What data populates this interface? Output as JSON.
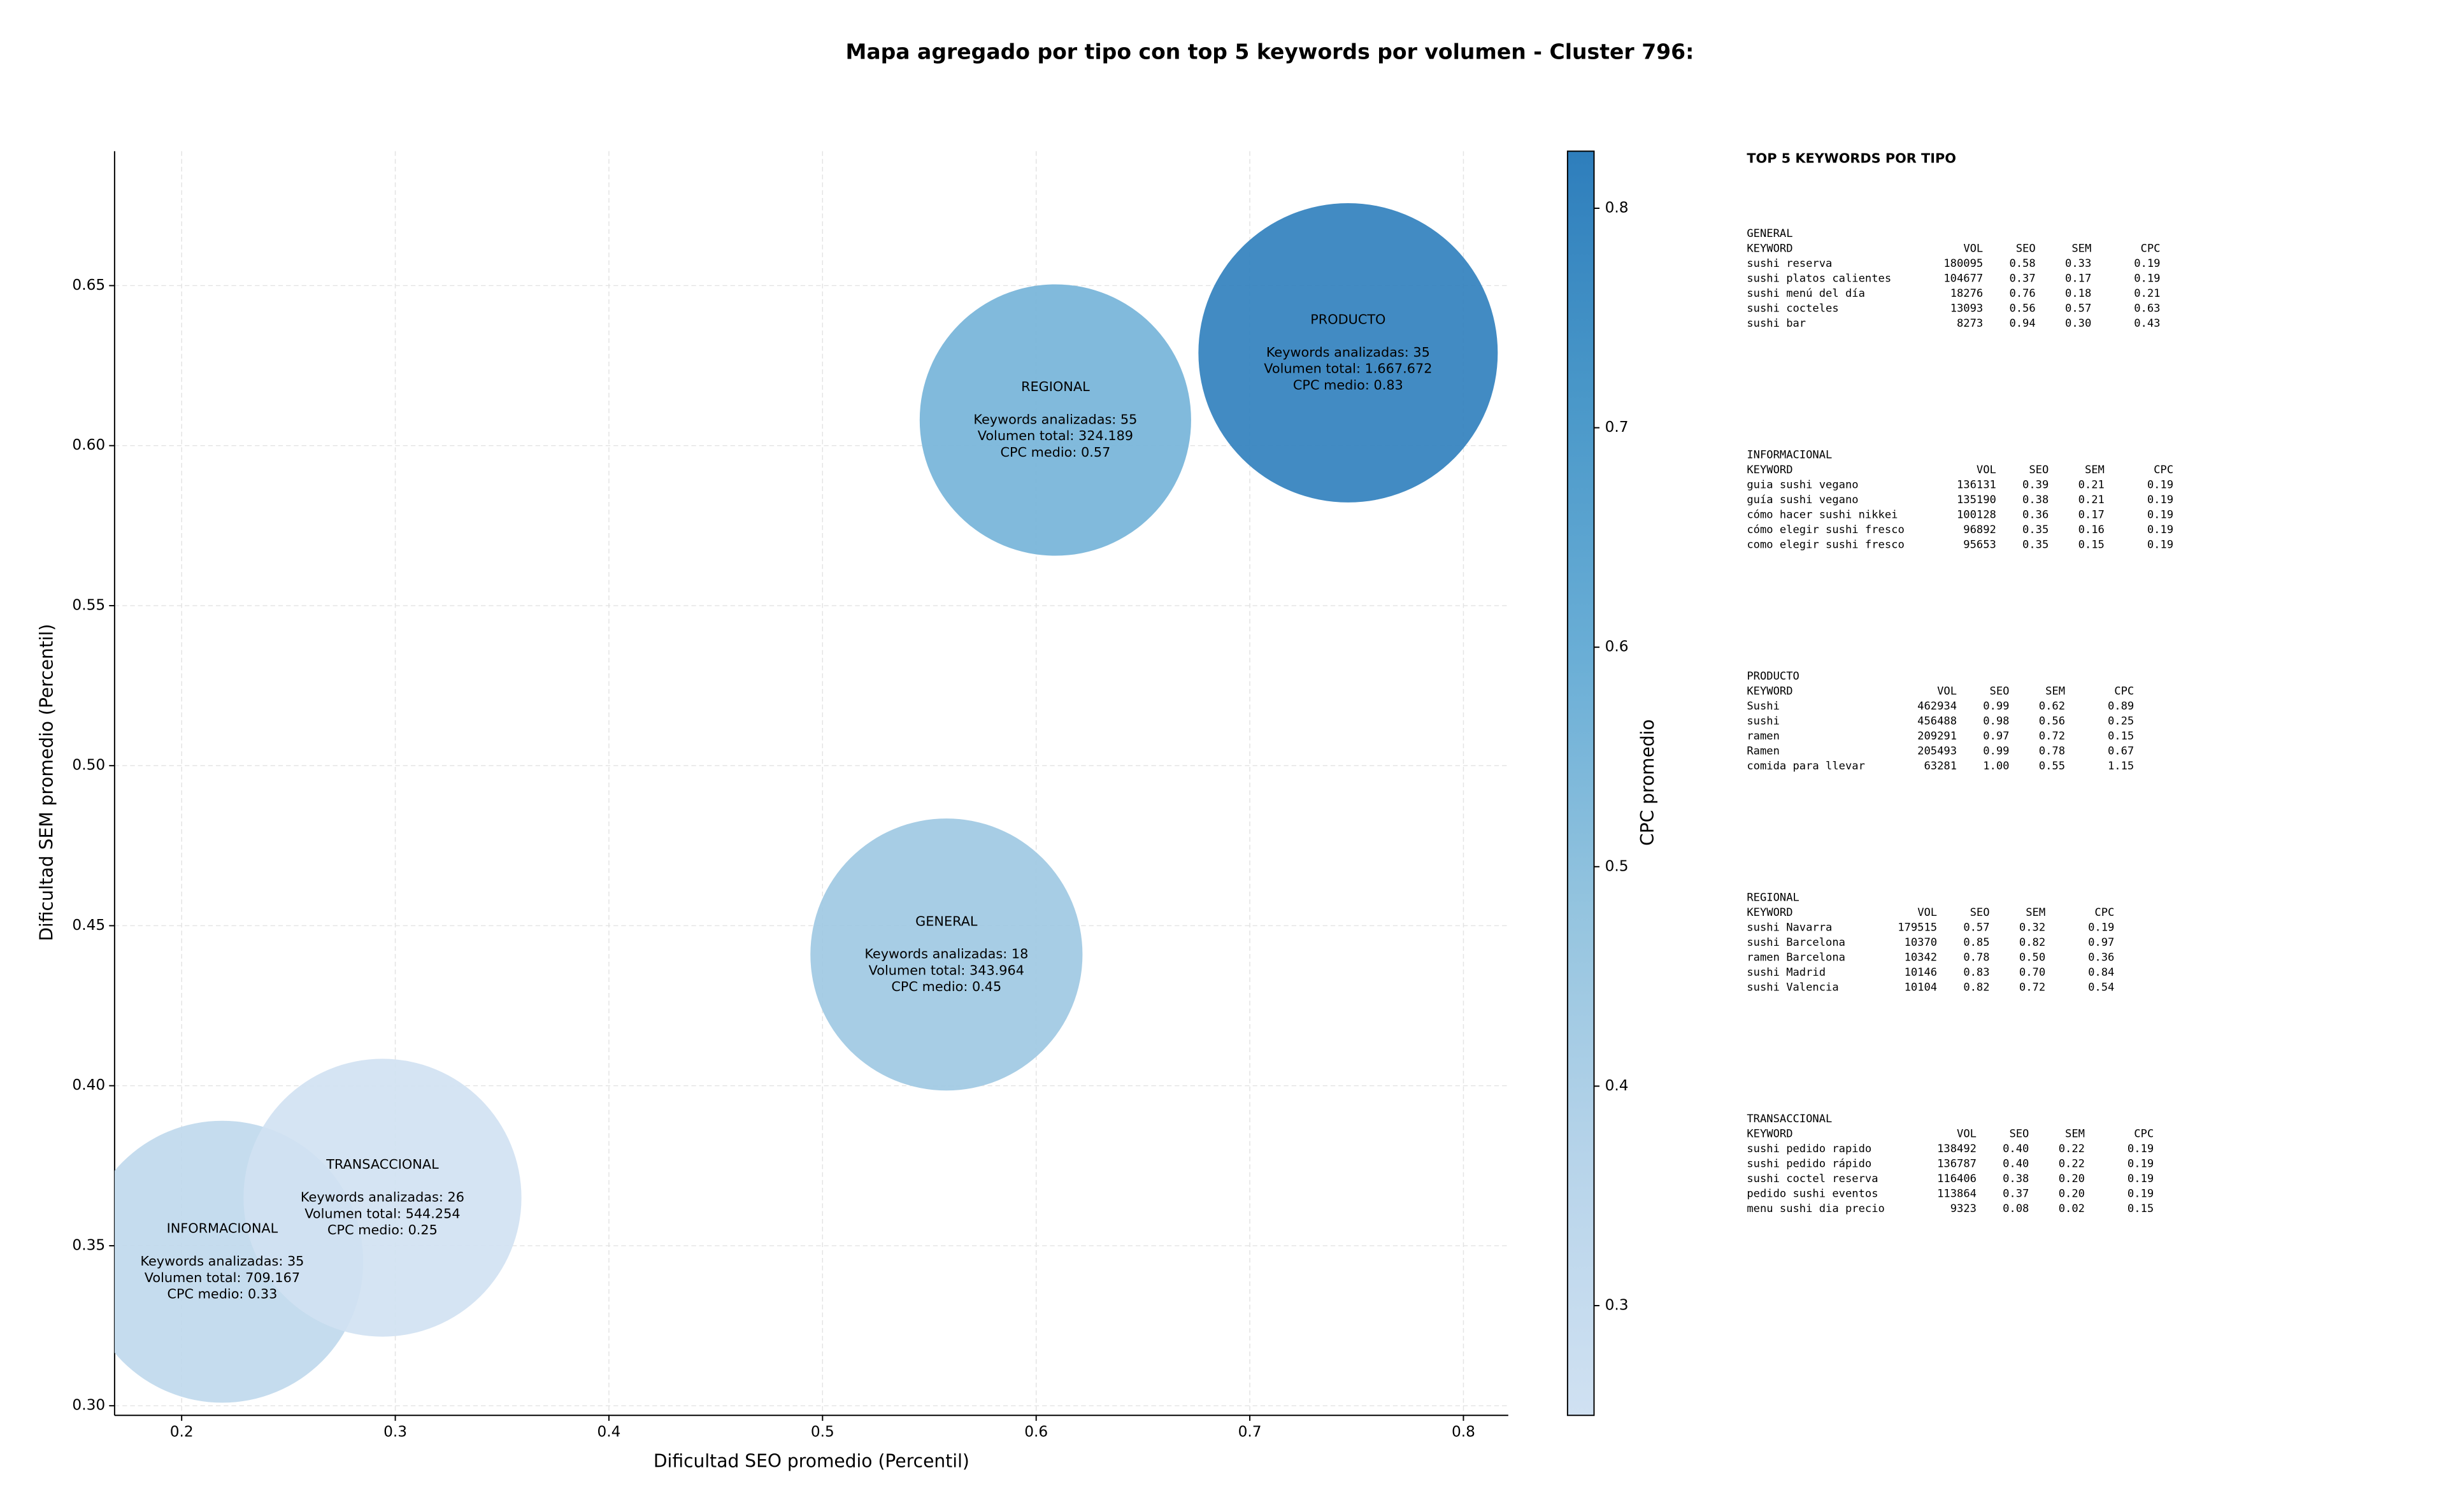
{
  "chart_data": {
    "type": "bubble",
    "title": "Mapa agregado por tipo con top 5 keywords por volumen - Cluster 796:",
    "x_label": "Dificultad SEO promedio (Percentil)",
    "y_label": "Dificultad SEM promedio (Percentil)",
    "categories": [
      "INFORMACIONAL",
      "TRANSACCIONAL",
      "GENERAL",
      "REGIONAL",
      "PRODUCTO"
    ],
    "x": [
      0.219,
      0.294,
      0.558,
      0.609,
      0.746
    ],
    "y": [
      0.345,
      0.365,
      0.441,
      0.608,
      0.629
    ],
    "cpc": [
      0.33,
      0.25,
      0.45,
      0.57,
      0.83
    ],
    "volume": [
      709167,
      544254,
      343964,
      324189,
      1667672
    ],
    "annotations": [
      [
        "Keywords analizadas: 35",
        "Volumen total: 709.167",
        "CPC medio: 0.33"
      ],
      [
        "Keywords analizadas: 26",
        "Volumen total: 544.254",
        "CPC medio: 0.25"
      ],
      [
        "Keywords analizadas: 18",
        "Volumen total: 343.964",
        "CPC medio: 0.45"
      ],
      [
        "Keywords analizadas: 55",
        "Volumen total: 324.189",
        "CPC medio: 0.57"
      ],
      [
        "Keywords analizadas: 35",
        "Volumen total: 1.667.672",
        "CPC medio: 0.83"
      ]
    ],
    "xlim": [
      0.1686,
      0.821
    ],
    "xticks": [
      0.2,
      0.3,
      0.4,
      0.5,
      0.6,
      0.7,
      0.8
    ],
    "ylim": [
      0.297,
      0.692
    ],
    "yticks": [
      {
        "value": 0.3,
        "label": "0.30"
      },
      0.35,
      {
        "value": 0.4,
        "label": "0.40"
      },
      0.45,
      {
        "value": 0.5,
        "label": "0.50"
      },
      0.55,
      {
        "value": 0.6,
        "label": "0.60"
      },
      0.65
    ],
    "grid": true,
    "colorbar": {
      "label": "CPC promedio",
      "lim": [
        0.25,
        0.826
      ],
      "ticks": [
        0.3,
        0.4,
        0.5,
        0.6,
        0.7,
        0.8
      ],
      "colors": [
        "#d0e1f2",
        "#b7d4ea",
        "#94c4df",
        "#6aaed6",
        "#4a98c9",
        "#2e7ebc"
      ]
    },
    "keyword_tables": {
      "title": "TOP 5 KEYWORDS POR TIPO",
      "header": [
        "KEYWORD",
        "VOL",
        "SEO",
        "SEM",
        "CPC"
      ],
      "groups": [
        {
          "name": "GENERAL",
          "rows": [
            [
              "sushi reserva",
              "180095",
              "0.58",
              "0.33",
              "0.19"
            ],
            [
              "sushi platos calientes",
              "104677",
              "0.37",
              "0.17",
              "0.19"
            ],
            [
              "sushi menú del día",
              "18276",
              "0.76",
              "0.18",
              "0.21"
            ],
            [
              "sushi cocteles",
              "13093",
              "0.56",
              "0.57",
              "0.63"
            ],
            [
              "sushi bar",
              "8273",
              "0.94",
              "0.30",
              "0.43"
            ]
          ]
        },
        {
          "name": "INFORMACIONAL",
          "rows": [
            [
              "guia sushi vegano",
              "136131",
              "0.39",
              "0.21",
              "0.19"
            ],
            [
              "guía sushi vegano",
              "135190",
              "0.38",
              "0.21",
              "0.19"
            ],
            [
              "cómo hacer sushi nikkei",
              "100128",
              "0.36",
              "0.17",
              "0.19"
            ],
            [
              "cómo elegir sushi fresco",
              "96892",
              "0.35",
              "0.16",
              "0.19"
            ],
            [
              "como elegir sushi fresco",
              "95653",
              "0.35",
              "0.15",
              "0.19"
            ]
          ]
        },
        {
          "name": "PRODUCTO",
          "rows": [
            [
              "Sushi",
              "462934",
              "0.99",
              "0.62",
              "0.89"
            ],
            [
              "sushi",
              "456488",
              "0.98",
              "0.56",
              "0.25"
            ],
            [
              "ramen",
              "209291",
              "0.97",
              "0.72",
              "0.15"
            ],
            [
              "Ramen",
              "205493",
              "0.99",
              "0.78",
              "0.67"
            ],
            [
              "comida para llevar",
              "63281",
              "1.00",
              "0.55",
              "1.15"
            ]
          ]
        },
        {
          "name": "REGIONAL",
          "rows": [
            [
              "sushi Navarra",
              "179515",
              "0.57",
              "0.32",
              "0.19"
            ],
            [
              "sushi Barcelona",
              "10370",
              "0.85",
              "0.82",
              "0.97"
            ],
            [
              "ramen Barcelona",
              "10342",
              "0.78",
              "0.50",
              "0.36"
            ],
            [
              "sushi Madrid",
              "10146",
              "0.83",
              "0.70",
              "0.84"
            ],
            [
              "sushi Valencia",
              "10104",
              "0.82",
              "0.72",
              "0.54"
            ]
          ]
        },
        {
          "name": "TRANSACCIONAL",
          "rows": [
            [
              "sushi pedido rapido",
              "138492",
              "0.40",
              "0.22",
              "0.19"
            ],
            [
              "sushi pedido rápido",
              "136787",
              "0.40",
              "0.22",
              "0.19"
            ],
            [
              "sushi coctel reserva",
              "116406",
              "0.38",
              "0.20",
              "0.19"
            ],
            [
              "pedido sushi eventos",
              "113864",
              "0.37",
              "0.20",
              "0.19"
            ],
            [
              "menu sushi dia precio",
              "9323",
              "0.08",
              "0.02",
              "0.15"
            ]
          ]
        }
      ]
    }
  }
}
